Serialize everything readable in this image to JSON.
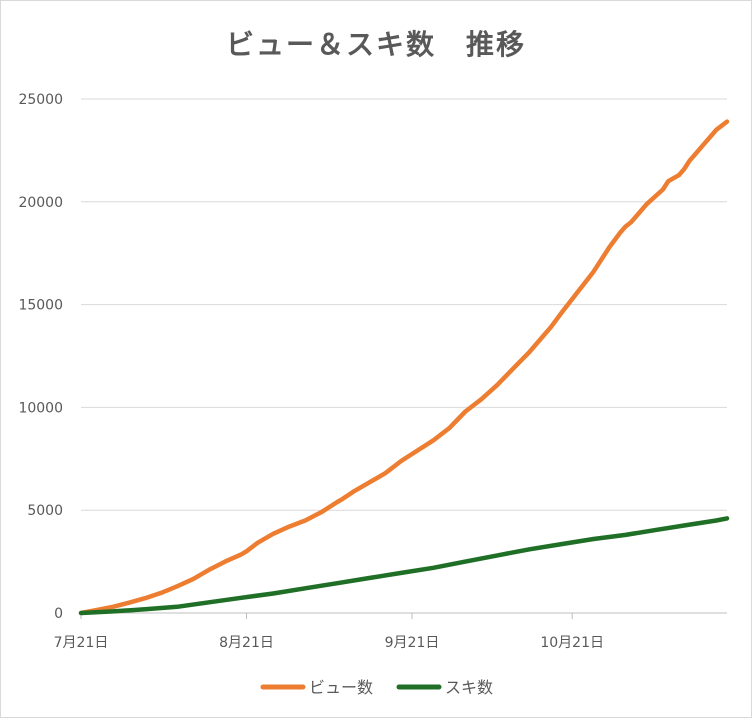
{
  "chart_data": {
    "type": "line",
    "title": "ビュー＆スキ数　推移",
    "xlabel": "",
    "ylabel": "",
    "x_ticks": [
      "7月21日",
      "8月21日",
      "9月21日",
      "10月21日"
    ],
    "x_tick_days": [
      0,
      31,
      62,
      92
    ],
    "x_range_days": [
      0,
      121
    ],
    "ylim": [
      0,
      25000
    ],
    "y_ticks": [
      0,
      5000,
      10000,
      15000,
      20000,
      25000
    ],
    "grid": true,
    "legend": "bottom",
    "series": [
      {
        "name": "ビュー数",
        "color": "#ED7D31",
        "x_days": [
          0,
          3,
          6,
          9,
          12,
          15,
          18,
          21,
          24,
          27,
          30,
          31,
          33,
          36,
          39,
          42,
          45,
          48,
          49,
          51,
          54,
          57,
          58,
          60,
          63,
          66,
          69,
          72,
          75,
          78,
          81,
          84,
          87,
          88,
          90,
          93,
          96,
          99,
          101,
          102,
          103,
          106,
          109,
          110,
          112,
          113,
          114,
          115,
          116,
          117,
          118,
          119,
          120,
          121
        ],
        "values": [
          0,
          150,
          300,
          500,
          720,
          980,
          1300,
          1650,
          2100,
          2500,
          2850,
          3000,
          3400,
          3850,
          4200,
          4500,
          4900,
          5400,
          5550,
          5900,
          6350,
          6800,
          7000,
          7400,
          7900,
          8400,
          9000,
          9800,
          10400,
          11100,
          11900,
          12700,
          13600,
          13900,
          14600,
          15600,
          16600,
          17800,
          18500,
          18800,
          19000,
          19900,
          20600,
          21000,
          21300,
          21600,
          22000,
          22300,
          22600,
          22900,
          23200,
          23500,
          23700,
          23900
        ]
      },
      {
        "name": "スキ数",
        "color": "#1F6F26",
        "x_days": [
          0,
          6,
          12,
          18,
          24,
          30,
          36,
          42,
          48,
          54,
          60,
          66,
          72,
          78,
          84,
          90,
          96,
          102,
          108,
          114,
          119,
          121
        ],
        "values": [
          0,
          80,
          180,
          300,
          520,
          740,
          950,
          1200,
          1450,
          1700,
          1950,
          2200,
          2500,
          2800,
          3100,
          3350,
          3600,
          3800,
          4050,
          4300,
          4500,
          4600
        ]
      }
    ]
  }
}
